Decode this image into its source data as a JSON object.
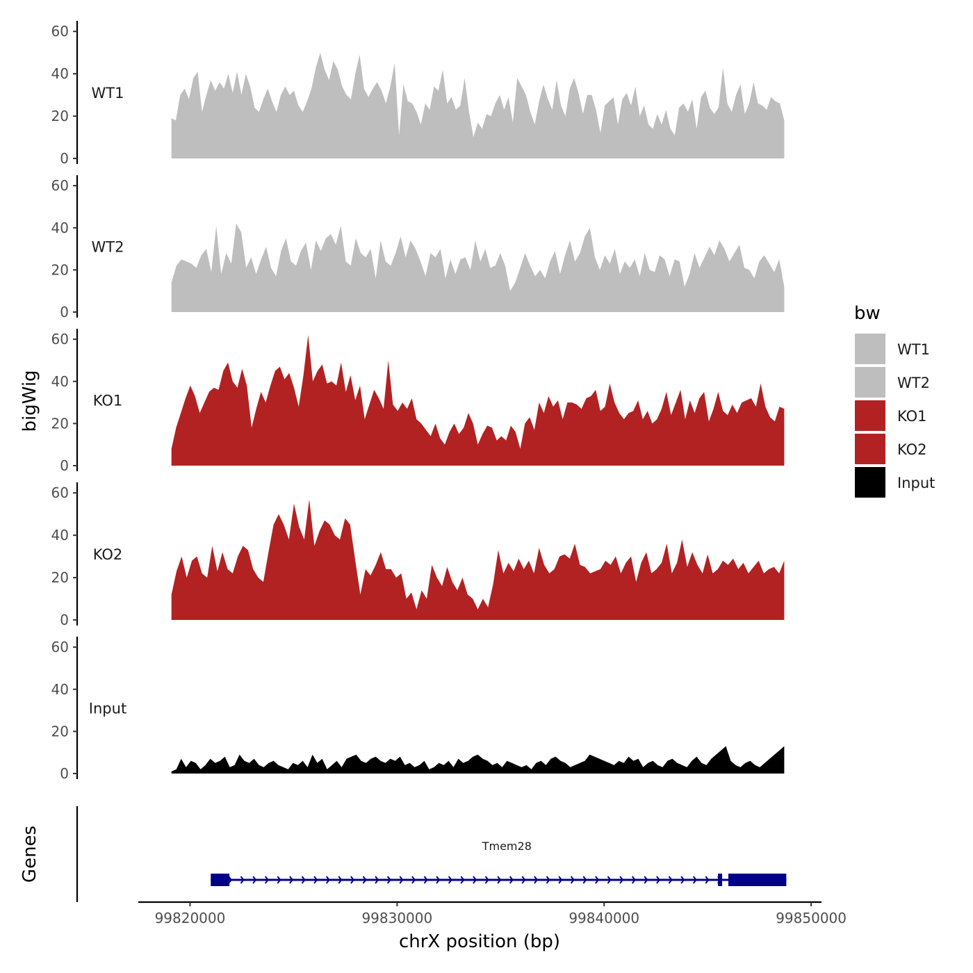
{
  "chart_data": {
    "type": "area",
    "title": "",
    "ylabel": "bigWig",
    "xlabel": "chrX position (bp)",
    "genes_label": "Genes",
    "ylim": [
      0,
      65
    ],
    "xlim": [
      99817500,
      99850500
    ],
    "y_ticks": [
      0,
      20,
      40,
      60
    ],
    "x_ticks": [
      99820000,
      99830000,
      99840000,
      99850000
    ],
    "x_tick_labels": [
      "99820000",
      "99830000",
      "99840000",
      "99850000"
    ],
    "data_start": 99819100,
    "data_end": 99848700,
    "legend": {
      "title": "bw",
      "position": "right",
      "entries": [
        {
          "label": "WT1",
          "color": "#bebebe"
        },
        {
          "label": "WT2",
          "color": "#bebebe"
        },
        {
          "label": "KO1",
          "color": "#b22222"
        },
        {
          "label": "KO2",
          "color": "#b22222"
        },
        {
          "label": "Input",
          "color": "#000000"
        }
      ]
    },
    "series": [
      {
        "name": "WT1",
        "color": "#bebebe",
        "values": [
          19,
          18,
          30,
          33,
          28,
          38,
          41,
          22,
          30,
          37,
          32,
          36,
          33,
          40,
          31,
          41,
          30,
          40,
          34,
          24,
          22,
          28,
          33,
          27,
          22,
          30,
          34,
          30,
          32,
          25,
          22,
          27,
          33,
          43,
          50,
          42,
          37,
          46,
          42,
          34,
          30,
          28,
          40,
          49,
          33,
          29,
          33,
          36,
          32,
          26,
          34,
          45,
          11,
          35,
          27,
          26,
          22,
          16,
          26,
          23,
          34,
          32,
          42,
          26,
          29,
          23,
          25,
          38,
          22,
          10,
          17,
          14,
          21,
          20,
          26,
          30,
          23,
          29,
          17,
          38,
          34,
          30,
          22,
          16,
          27,
          35,
          28,
          23,
          37,
          25,
          20,
          33,
          38,
          31,
          21,
          30,
          30,
          23,
          12,
          25,
          27,
          29,
          16,
          28,
          31,
          25,
          34,
          20,
          25,
          16,
          14,
          21,
          16,
          23,
          14,
          11,
          24,
          26,
          22,
          28,
          14,
          29,
          32,
          24,
          21,
          24,
          43,
          26,
          22,
          30,
          35,
          21,
          26,
          36,
          26,
          25,
          23,
          29,
          27,
          26,
          18
        ]
      },
      {
        "name": "WT2",
        "color": "#bebebe",
        "values": [
          14,
          22,
          25,
          24,
          23,
          21,
          27,
          30,
          19,
          41,
          18,
          28,
          23,
          42,
          38,
          21,
          26,
          18,
          25,
          31,
          21,
          17,
          29,
          35,
          24,
          22,
          29,
          33,
          20,
          34,
          29,
          35,
          37,
          32,
          41,
          24,
          22,
          35,
          28,
          26,
          30,
          16,
          34,
          24,
          22,
          28,
          36,
          26,
          34,
          30,
          24,
          17,
          28,
          26,
          30,
          16,
          25,
          18,
          25,
          26,
          20,
          34,
          24,
          30,
          21,
          22,
          28,
          22,
          10,
          14,
          21,
          28,
          22,
          17,
          20,
          16,
          24,
          29,
          18,
          27,
          34,
          24,
          28,
          36,
          40,
          26,
          20,
          27,
          23,
          30,
          18,
          24,
          21,
          25,
          17,
          28,
          20,
          19,
          27,
          25,
          17,
          25,
          24,
          12,
          18,
          28,
          21,
          26,
          31,
          27,
          34,
          30,
          24,
          28,
          32,
          21,
          20,
          16,
          24,
          27,
          23,
          19,
          25,
          12
        ]
      },
      {
        "name": "KO1",
        "color": "#b22222",
        "values": [
          8,
          18,
          25,
          32,
          38,
          33,
          25,
          30,
          35,
          37,
          36,
          45,
          49,
          40,
          37,
          46,
          38,
          18,
          27,
          35,
          30,
          38,
          45,
          47,
          41,
          44,
          37,
          28,
          43,
          62,
          40,
          45,
          48,
          39,
          40,
          38,
          49,
          35,
          43,
          31,
          38,
          22,
          29,
          36,
          32,
          27,
          50,
          29,
          26,
          30,
          27,
          32,
          22,
          20,
          17,
          14,
          20,
          13,
          10,
          16,
          20,
          15,
          18,
          25,
          20,
          10,
          15,
          19,
          18,
          12,
          14,
          12,
          19,
          16,
          8,
          20,
          23,
          17,
          30,
          25,
          33,
          28,
          31,
          22,
          30,
          30,
          29,
          27,
          32,
          33,
          36,
          26,
          28,
          39,
          30,
          25,
          22,
          25,
          26,
          31,
          22,
          26,
          20,
          22,
          27,
          35,
          24,
          30,
          36,
          22,
          31,
          25,
          32,
          35,
          21,
          27,
          35,
          26,
          24,
          29,
          25,
          30,
          31,
          32,
          28,
          39,
          28,
          23,
          21,
          28,
          27
        ]
      },
      {
        "name": "KO2",
        "color": "#b22222",
        "values": [
          12,
          23,
          30,
          20,
          28,
          30,
          22,
          20,
          35,
          23,
          32,
          24,
          22,
          30,
          35,
          33,
          24,
          20,
          18,
          32,
          45,
          50,
          45,
          38,
          55,
          44,
          38,
          57,
          35,
          42,
          47,
          45,
          40,
          38,
          48,
          45,
          28,
          12,
          24,
          21,
          26,
          32,
          24,
          24,
          20,
          22,
          10,
          13,
          5,
          14,
          10,
          26,
          20,
          16,
          25,
          18,
          14,
          20,
          12,
          10,
          5,
          10,
          6,
          17,
          33,
          22,
          27,
          23,
          29,
          24,
          28,
          22,
          34,
          26,
          22,
          24,
          30,
          31,
          29,
          36,
          26,
          25,
          22,
          23,
          24,
          28,
          26,
          30,
          22,
          27,
          30,
          18,
          27,
          32,
          22,
          24,
          27,
          36,
          22,
          27,
          38,
          25,
          32,
          26,
          22,
          31,
          22,
          24,
          28,
          26,
          29,
          24,
          27,
          22,
          25,
          28,
          22,
          24,
          25,
          22,
          28
        ]
      },
      {
        "name": "Input",
        "color": "#000000",
        "values": [
          1,
          2,
          7,
          3,
          6,
          5,
          2,
          4,
          7,
          5,
          6,
          8,
          3,
          4,
          9,
          6,
          5,
          7,
          4,
          3,
          5,
          6,
          4,
          3,
          2,
          5,
          4,
          6,
          3,
          9,
          5,
          7,
          2,
          4,
          6,
          3,
          7,
          8,
          9,
          6,
          5,
          7,
          8,
          6,
          5,
          7,
          6,
          8,
          4,
          5,
          3,
          4,
          6,
          2,
          3,
          5,
          4,
          6,
          3,
          7,
          5,
          6,
          8,
          9,
          7,
          6,
          4,
          5,
          3,
          6,
          5,
          4,
          3,
          4,
          2,
          5,
          6,
          4,
          7,
          8,
          6,
          5,
          3,
          4,
          5,
          6,
          9,
          8,
          7,
          6,
          5,
          4,
          6,
          5,
          8,
          6,
          7,
          3,
          5,
          6,
          4,
          3,
          6,
          7,
          5,
          4,
          3,
          6,
          8,
          5,
          4,
          7,
          9,
          11,
          13,
          6,
          4,
          3,
          5,
          6,
          4,
          3,
          5,
          7,
          9,
          11,
          13
        ]
      }
    ],
    "genes": [
      {
        "name": "Tmem28",
        "start": 99821000,
        "end": 99848800,
        "strand": "+",
        "exons": [
          [
            99821000,
            99821900
          ],
          [
            99845500,
            99845700
          ],
          [
            99846000,
            99848800
          ]
        ],
        "color": "#00008b"
      }
    ]
  }
}
